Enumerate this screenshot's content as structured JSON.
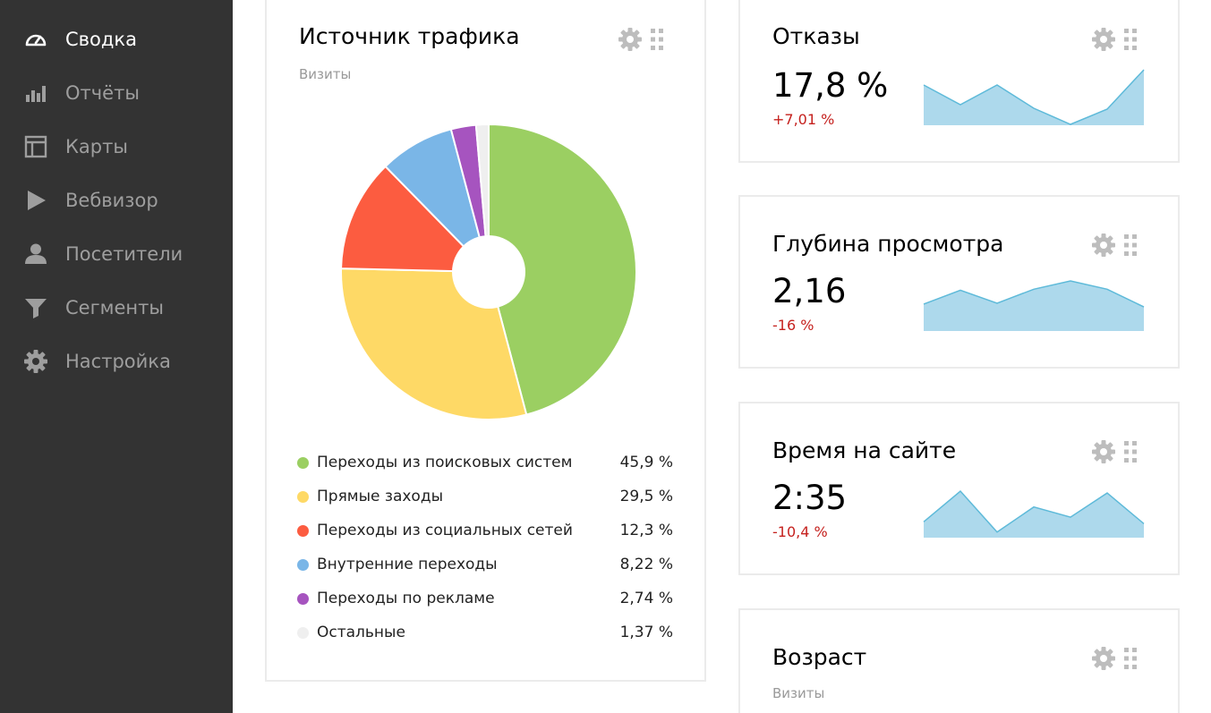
{
  "sidebar": {
    "items": [
      {
        "label": "Сводка",
        "icon": "speedometer-icon",
        "active": true
      },
      {
        "label": "Отчёты",
        "icon": "bar-chart-icon",
        "active": false
      },
      {
        "label": "Карты",
        "icon": "map-layout-icon",
        "active": false
      },
      {
        "label": "Вебвизор",
        "icon": "play-icon",
        "active": false
      },
      {
        "label": "Посетители",
        "icon": "person-icon",
        "active": false
      },
      {
        "label": "Сегменты",
        "icon": "filter-icon",
        "active": false
      },
      {
        "label": "Настройка",
        "icon": "gear-icon",
        "active": false
      }
    ]
  },
  "traffic": {
    "title": "Источник трафика",
    "subtitle": "Визиты",
    "chart_data": {
      "type": "pie",
      "donut": true,
      "slices": [
        {
          "name": "Переходы из поисковых систем",
          "value": 45.9,
          "label": "45,9 %",
          "color": "#9bcf62"
        },
        {
          "name": "Прямые заходы",
          "value": 29.5,
          "label": "29,5 %",
          "color": "#fed966"
        },
        {
          "name": "Переходы из социальных сетей",
          "value": 12.3,
          "label": "12,3 %",
          "color": "#fc5c40"
        },
        {
          "name": "Внутренние переходы",
          "value": 8.22,
          "label": "8,22 %",
          "color": "#7ab6e7"
        },
        {
          "name": "Переходы по рекламе",
          "value": 2.74,
          "label": "2,74 %",
          "color": "#a654bf"
        },
        {
          "name": "Остальные",
          "value": 1.37,
          "label": "1,37 %",
          "color": "#efefef"
        }
      ],
      "legend": "bottom"
    }
  },
  "metrics": [
    {
      "title": "Отказы",
      "value": "17,8 %",
      "delta": "+7,01 %",
      "chart_data": {
        "type": "area",
        "values": [
          44,
          22,
          44,
          18,
          0,
          17,
          61
        ],
        "ylim": [
          0,
          61
        ],
        "color": "#add9ec",
        "line_color": "#5ebad9"
      }
    },
    {
      "title": "Глубина просмотра",
      "value": "2,16",
      "delta": "-16 %",
      "chart_data": {
        "type": "area",
        "values": [
          28,
          43,
          29,
          44,
          53,
          44,
          25
        ],
        "ylim": [
          0,
          53
        ],
        "color": "#add9ec",
        "line_color": "#5ebad9"
      }
    },
    {
      "title": "Время на сайте",
      "value": "2:35",
      "delta": "-10,4 %",
      "chart_data": {
        "type": "area",
        "values": [
          16,
          49,
          5,
          32,
          21,
          47,
          14
        ],
        "ylim": [
          0,
          49
        ],
        "color": "#add9ec",
        "line_color": "#5ebad9"
      }
    }
  ],
  "age": {
    "title": "Возраст",
    "subtitle": "Визиты"
  },
  "icons": {
    "settings": "gear-icon",
    "drag": "drag-handle-icon"
  },
  "colors": {
    "sidebar_bg": "#333333",
    "active_text": "#ffffff",
    "inactive_text": "#9e9e9e",
    "negative": "#c5211e",
    "tool_icon": "#bdbdbd"
  }
}
